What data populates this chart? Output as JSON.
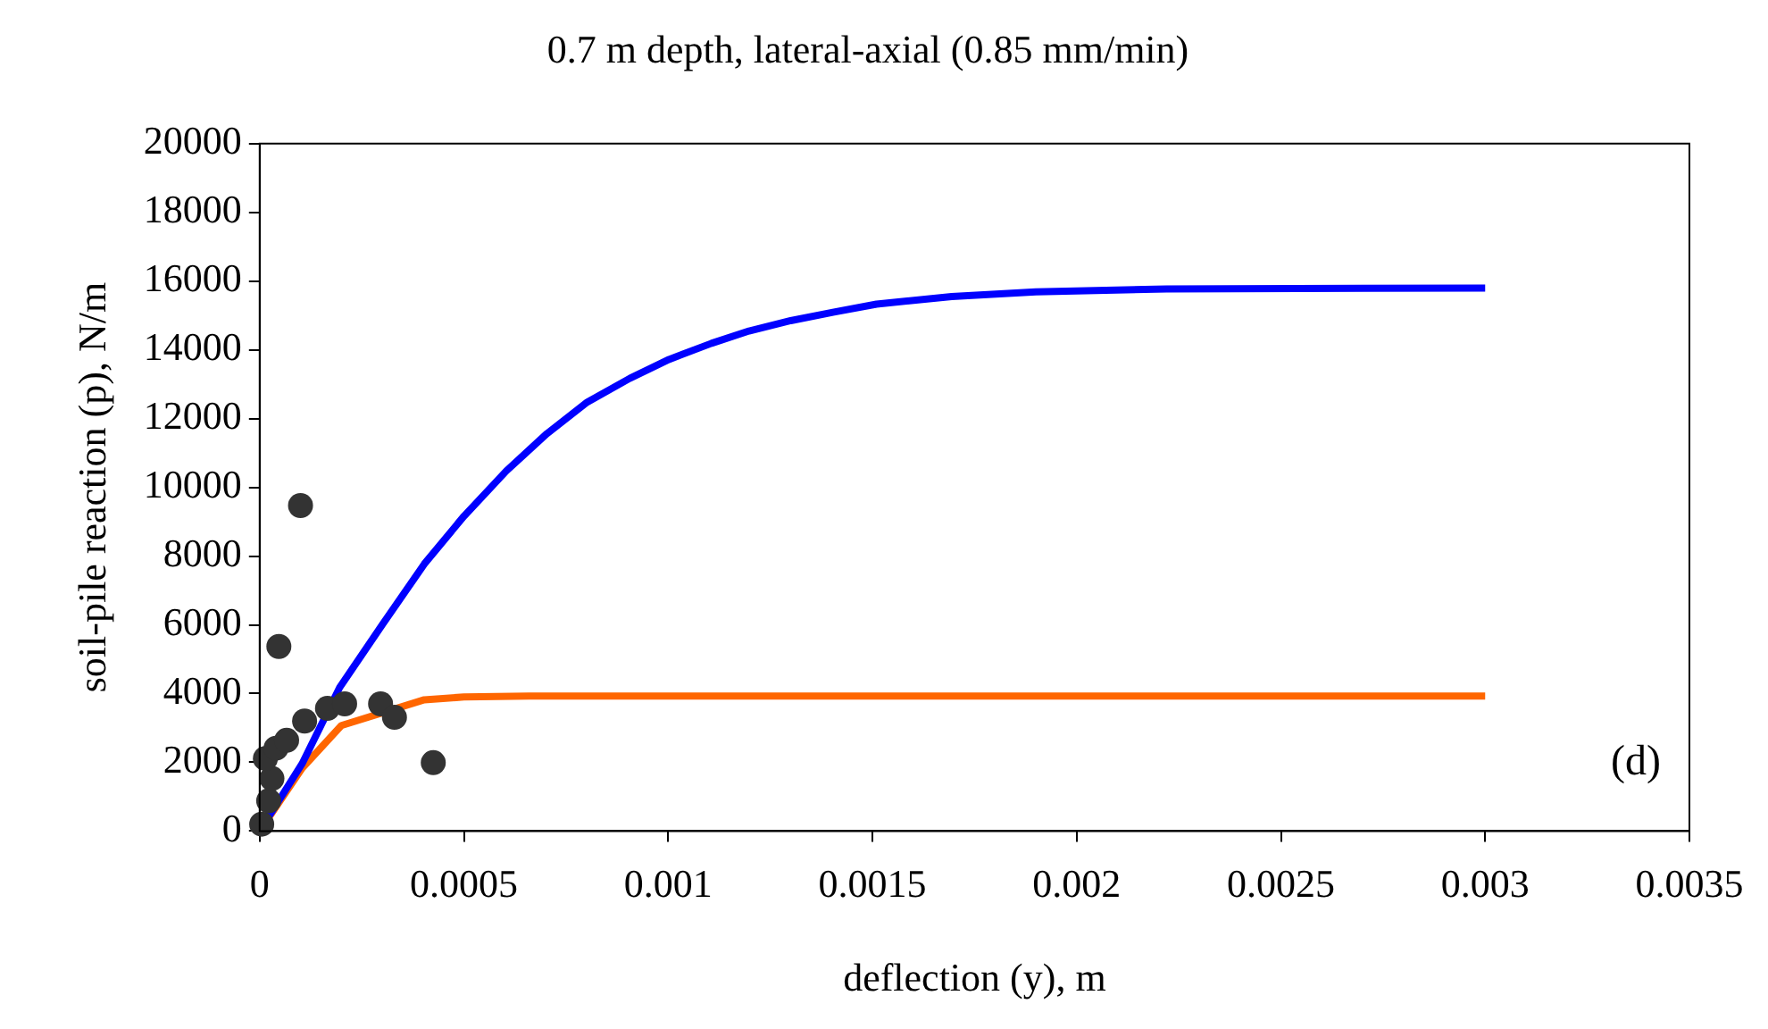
{
  "chart_data": {
    "type": "scatter",
    "title": "0.7 m depth, lateral-axial (0.85 mm/min)",
    "xlabel": "deflection (y), m",
    "ylabel": "soil-pile reaction (p), N/m",
    "annotations": [
      "(d)"
    ],
    "xlim": [
      0,
      0.0035
    ],
    "xticks": [
      0,
      0.0005,
      0.001,
      0.0015,
      0.002,
      0.0025,
      0.003,
      0.0035
    ],
    "ylim": [
      0,
      20000
    ],
    "yticks": [
      0,
      2000,
      4000,
      6000,
      8000,
      10000,
      12000,
      14000,
      16000,
      18000,
      20000
    ],
    "grid": false,
    "legend": false,
    "marker": "circle",
    "series": [
      {
        "type": "scatter",
        "color": "#333333",
        "x": [
          5e-06,
          2.2e-05,
          3e-05,
          1.4e-05,
          4e-05,
          6.6e-05,
          0.00011,
          0.000166,
          0.000208,
          0.000296,
          0.00033,
          0.000425,
          4.7e-05,
          0.0001
        ],
        "values": [
          200,
          880,
          1530,
          2110,
          2410,
          2640,
          3200,
          3570,
          3700,
          3700,
          3310,
          1990,
          5370,
          9470
        ]
      },
      {
        "type": "line",
        "color": "#0000ff",
        "marker": "none",
        "x": [
          0,
          0.000104,
          0.000196,
          0.0003,
          0.000403,
          0.0005,
          0.000604,
          0.000703,
          0.000802,
          0.000906,
          0.001002,
          0.001106,
          0.001198,
          0.0013,
          0.001406,
          0.00151,
          0.001694,
          0.0019,
          0.00222,
          0.003
        ],
        "values": [
          0,
          1960,
          4180,
          6000,
          7770,
          9160,
          10480,
          11560,
          12480,
          13170,
          13720,
          14190,
          14550,
          14850,
          15100,
          15330,
          15550,
          15690,
          15770,
          15800
        ]
      },
      {
        "type": "line",
        "color": "#ff6600",
        "marker": "none",
        "x": [
          0,
          0.000104,
          0.0002,
          0.000403,
          0.0005,
          0.00066,
          0.003
        ],
        "values": [
          0,
          1830,
          3070,
          3820,
          3900,
          3930,
          3930
        ]
      }
    ]
  }
}
